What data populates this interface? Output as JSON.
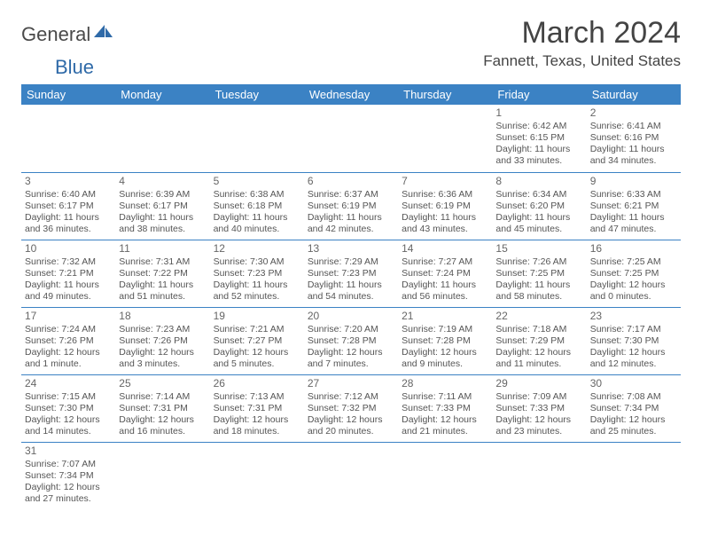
{
  "logo": {
    "text1": "General",
    "text2": "Blue",
    "icon_color": "#2f6aa8"
  },
  "title": "March 2024",
  "location": "Fannett, Texas, United States",
  "header_bg": "#3b82c4",
  "row_border": "#3b82c4",
  "weekdays": [
    "Sunday",
    "Monday",
    "Tuesday",
    "Wednesday",
    "Thursday",
    "Friday",
    "Saturday"
  ],
  "rows": [
    [
      null,
      null,
      null,
      null,
      null,
      {
        "n": "1",
        "sr": "6:42 AM",
        "ss": "6:15 PM",
        "dl": "11 hours and 33 minutes."
      },
      {
        "n": "2",
        "sr": "6:41 AM",
        "ss": "6:16 PM",
        "dl": "11 hours and 34 minutes."
      }
    ],
    [
      {
        "n": "3",
        "sr": "6:40 AM",
        "ss": "6:17 PM",
        "dl": "11 hours and 36 minutes."
      },
      {
        "n": "4",
        "sr": "6:39 AM",
        "ss": "6:17 PM",
        "dl": "11 hours and 38 minutes."
      },
      {
        "n": "5",
        "sr": "6:38 AM",
        "ss": "6:18 PM",
        "dl": "11 hours and 40 minutes."
      },
      {
        "n": "6",
        "sr": "6:37 AM",
        "ss": "6:19 PM",
        "dl": "11 hours and 42 minutes."
      },
      {
        "n": "7",
        "sr": "6:36 AM",
        "ss": "6:19 PM",
        "dl": "11 hours and 43 minutes."
      },
      {
        "n": "8",
        "sr": "6:34 AM",
        "ss": "6:20 PM",
        "dl": "11 hours and 45 minutes."
      },
      {
        "n": "9",
        "sr": "6:33 AM",
        "ss": "6:21 PM",
        "dl": "11 hours and 47 minutes."
      }
    ],
    [
      {
        "n": "10",
        "sr": "7:32 AM",
        "ss": "7:21 PM",
        "dl": "11 hours and 49 minutes."
      },
      {
        "n": "11",
        "sr": "7:31 AM",
        "ss": "7:22 PM",
        "dl": "11 hours and 51 minutes."
      },
      {
        "n": "12",
        "sr": "7:30 AM",
        "ss": "7:23 PM",
        "dl": "11 hours and 52 minutes."
      },
      {
        "n": "13",
        "sr": "7:29 AM",
        "ss": "7:23 PM",
        "dl": "11 hours and 54 minutes."
      },
      {
        "n": "14",
        "sr": "7:27 AM",
        "ss": "7:24 PM",
        "dl": "11 hours and 56 minutes."
      },
      {
        "n": "15",
        "sr": "7:26 AM",
        "ss": "7:25 PM",
        "dl": "11 hours and 58 minutes."
      },
      {
        "n": "16",
        "sr": "7:25 AM",
        "ss": "7:25 PM",
        "dl": "12 hours and 0 minutes."
      }
    ],
    [
      {
        "n": "17",
        "sr": "7:24 AM",
        "ss": "7:26 PM",
        "dl": "12 hours and 1 minute."
      },
      {
        "n": "18",
        "sr": "7:23 AM",
        "ss": "7:26 PM",
        "dl": "12 hours and 3 minutes."
      },
      {
        "n": "19",
        "sr": "7:21 AM",
        "ss": "7:27 PM",
        "dl": "12 hours and 5 minutes."
      },
      {
        "n": "20",
        "sr": "7:20 AM",
        "ss": "7:28 PM",
        "dl": "12 hours and 7 minutes."
      },
      {
        "n": "21",
        "sr": "7:19 AM",
        "ss": "7:28 PM",
        "dl": "12 hours and 9 minutes."
      },
      {
        "n": "22",
        "sr": "7:18 AM",
        "ss": "7:29 PM",
        "dl": "12 hours and 11 minutes."
      },
      {
        "n": "23",
        "sr": "7:17 AM",
        "ss": "7:30 PM",
        "dl": "12 hours and 12 minutes."
      }
    ],
    [
      {
        "n": "24",
        "sr": "7:15 AM",
        "ss": "7:30 PM",
        "dl": "12 hours and 14 minutes."
      },
      {
        "n": "25",
        "sr": "7:14 AM",
        "ss": "7:31 PM",
        "dl": "12 hours and 16 minutes."
      },
      {
        "n": "26",
        "sr": "7:13 AM",
        "ss": "7:31 PM",
        "dl": "12 hours and 18 minutes."
      },
      {
        "n": "27",
        "sr": "7:12 AM",
        "ss": "7:32 PM",
        "dl": "12 hours and 20 minutes."
      },
      {
        "n": "28",
        "sr": "7:11 AM",
        "ss": "7:33 PM",
        "dl": "12 hours and 21 minutes."
      },
      {
        "n": "29",
        "sr": "7:09 AM",
        "ss": "7:33 PM",
        "dl": "12 hours and 23 minutes."
      },
      {
        "n": "30",
        "sr": "7:08 AM",
        "ss": "7:34 PM",
        "dl": "12 hours and 25 minutes."
      }
    ],
    [
      {
        "n": "31",
        "sr": "7:07 AM",
        "ss": "7:34 PM",
        "dl": "12 hours and 27 minutes."
      },
      null,
      null,
      null,
      null,
      null,
      null
    ]
  ],
  "labels": {
    "sunrise": "Sunrise:",
    "sunset": "Sunset:",
    "daylight": "Daylight:"
  }
}
